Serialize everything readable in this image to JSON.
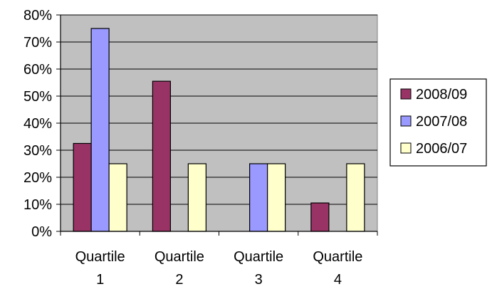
{
  "chart_data": {
    "type": "bar",
    "categories": [
      [
        "Quartile",
        "1"
      ],
      [
        "Quartile",
        "2"
      ],
      [
        "Quartile",
        "3"
      ],
      [
        "Quartile",
        "4"
      ]
    ],
    "series": [
      {
        "name": "2008/09",
        "values": [
          32.5,
          55.5,
          0,
          10.5
        ],
        "color": "#993366"
      },
      {
        "name": "2007/08",
        "values": [
          75,
          0,
          25,
          0
        ],
        "color": "#9999ff"
      },
      {
        "name": "2006/07",
        "values": [
          25,
          25,
          25,
          25
        ],
        "color": "#ffffcc"
      }
    ],
    "ylim": [
      0,
      80
    ],
    "yticks": [
      "0%",
      "10%",
      "20%",
      "30%",
      "40%",
      "50%",
      "60%",
      "70%",
      "80%"
    ],
    "grid": true,
    "plot_background": "#c0c0c0",
    "legend_position": "right"
  }
}
